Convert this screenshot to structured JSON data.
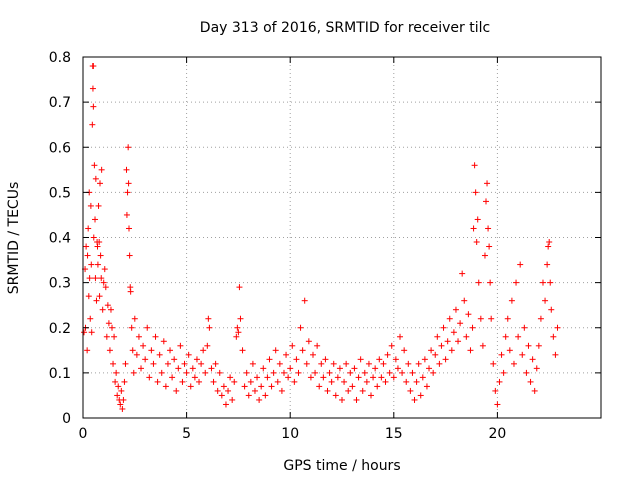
{
  "chart_data": {
    "type": "scatter",
    "title": "Day 313 of 2016, SRMTID for receiver tilc",
    "xlabel": "GPS time / hours",
    "ylabel": "SRMTID / TECUs",
    "xlim": [
      0,
      25
    ],
    "ylim": [
      0,
      0.8
    ],
    "xticks": [
      0,
      5,
      10,
      15,
      20
    ],
    "yticks": [
      0,
      0.1,
      0.2,
      0.3,
      0.4,
      0.5,
      0.6,
      0.7,
      0.8
    ],
    "xtick_labels": [
      "0",
      "5",
      "10",
      "15",
      "20"
    ],
    "ytick_labels": [
      "0",
      "0.1",
      "0.2",
      "0.3",
      "0.4",
      "0.5",
      "0.6",
      "0.7",
      "0.8"
    ],
    "grid": true,
    "marker": "+",
    "color": "#ff0000",
    "series": [
      {
        "name": "SRMTID",
        "points": [
          [
            0.05,
            0.19
          ],
          [
            0.1,
            0.33
          ],
          [
            0.12,
            0.2
          ],
          [
            0.15,
            0.38
          ],
          [
            0.2,
            0.15
          ],
          [
            0.22,
            0.36
          ],
          [
            0.25,
            0.42
          ],
          [
            0.28,
            0.27
          ],
          [
            0.3,
            0.5
          ],
          [
            0.32,
            0.31
          ],
          [
            0.35,
            0.22
          ],
          [
            0.38,
            0.47
          ],
          [
            0.4,
            0.34
          ],
          [
            0.42,
            0.19
          ],
          [
            0.45,
            0.65
          ],
          [
            0.47,
            0.78
          ],
          [
            0.48,
            0.73
          ],
          [
            0.5,
            0.78
          ],
          [
            0.5,
            0.69
          ],
          [
            0.52,
            0.4
          ],
          [
            0.55,
            0.56
          ],
          [
            0.58,
            0.44
          ],
          [
            0.6,
            0.31
          ],
          [
            0.62,
            0.53
          ],
          [
            0.65,
            0.26
          ],
          [
            0.68,
            0.39
          ],
          [
            0.7,
            0.38
          ],
          [
            0.72,
            0.34
          ],
          [
            0.75,
            0.47
          ],
          [
            0.78,
            0.39
          ],
          [
            0.8,
            0.27
          ],
          [
            0.82,
            0.52
          ],
          [
            0.85,
            0.36
          ],
          [
            0.88,
            0.31
          ],
          [
            0.9,
            0.55
          ],
          [
            0.95,
            0.24
          ],
          [
            1.0,
            0.3
          ],
          [
            1.05,
            0.33
          ],
          [
            1.1,
            0.29
          ],
          [
            1.15,
            0.18
          ],
          [
            1.2,
            0.25
          ],
          [
            1.25,
            0.21
          ],
          [
            1.3,
            0.15
          ],
          [
            1.35,
            0.24
          ],
          [
            1.4,
            0.2
          ],
          [
            1.45,
            0.12
          ],
          [
            1.5,
            0.18
          ],
          [
            1.55,
            0.08
          ],
          [
            1.6,
            0.1
          ],
          [
            1.65,
            0.05
          ],
          [
            1.7,
            0.07
          ],
          [
            1.75,
            0.04
          ],
          [
            1.8,
            0.03
          ],
          [
            1.85,
            0.06
          ],
          [
            1.9,
            0.02
          ],
          [
            1.95,
            0.04
          ],
          [
            2.0,
            0.08
          ],
          [
            2.05,
            0.12
          ],
          [
            2.1,
            0.55
          ],
          [
            2.12,
            0.45
          ],
          [
            2.15,
            0.5
          ],
          [
            2.18,
            0.6
          ],
          [
            2.2,
            0.52
          ],
          [
            2.22,
            0.42
          ],
          [
            2.25,
            0.36
          ],
          [
            2.28,
            0.29
          ],
          [
            2.3,
            0.28
          ],
          [
            2.35,
            0.2
          ],
          [
            2.4,
            0.15
          ],
          [
            2.45,
            0.1
          ],
          [
            2.5,
            0.22
          ],
          [
            2.6,
            0.14
          ],
          [
            2.7,
            0.18
          ],
          [
            2.8,
            0.11
          ],
          [
            2.9,
            0.16
          ],
          [
            3.0,
            0.13
          ],
          [
            3.1,
            0.2
          ],
          [
            3.2,
            0.09
          ],
          [
            3.3,
            0.15
          ],
          [
            3.4,
            0.12
          ],
          [
            3.5,
            0.18
          ],
          [
            3.6,
            0.08
          ],
          [
            3.7,
            0.14
          ],
          [
            3.8,
            0.1
          ],
          [
            3.9,
            0.17
          ],
          [
            4.0,
            0.07
          ],
          [
            4.1,
            0.12
          ],
          [
            4.2,
            0.15
          ],
          [
            4.3,
            0.09
          ],
          [
            4.4,
            0.13
          ],
          [
            4.5,
            0.06
          ],
          [
            4.6,
            0.11
          ],
          [
            4.7,
            0.16
          ],
          [
            4.8,
            0.08
          ],
          [
            4.9,
            0.12
          ],
          [
            5.0,
            0.1
          ],
          [
            5.1,
            0.14
          ],
          [
            5.2,
            0.07
          ],
          [
            5.3,
            0.11
          ],
          [
            5.4,
            0.09
          ],
          [
            5.5,
            0.13
          ],
          [
            5.6,
            0.08
          ],
          [
            5.7,
            0.12
          ],
          [
            5.8,
            0.15
          ],
          [
            5.9,
            0.1
          ],
          [
            6.0,
            0.16
          ],
          [
            6.05,
            0.22
          ],
          [
            6.1,
            0.2
          ],
          [
            6.2,
            0.11
          ],
          [
            6.3,
            0.08
          ],
          [
            6.4,
            0.12
          ],
          [
            6.5,
            0.06
          ],
          [
            6.6,
            0.1
          ],
          [
            6.7,
            0.05
          ],
          [
            6.8,
            0.07
          ],
          [
            6.9,
            0.03
          ],
          [
            7.0,
            0.06
          ],
          [
            7.1,
            0.09
          ],
          [
            7.2,
            0.04
          ],
          [
            7.3,
            0.08
          ],
          [
            7.4,
            0.18
          ],
          [
            7.45,
            0.2
          ],
          [
            7.5,
            0.19
          ],
          [
            7.55,
            0.29
          ],
          [
            7.6,
            0.22
          ],
          [
            7.7,
            0.15
          ],
          [
            7.8,
            0.07
          ],
          [
            7.9,
            0.1
          ],
          [
            8.0,
            0.05
          ],
          [
            8.1,
            0.08
          ],
          [
            8.2,
            0.12
          ],
          [
            8.3,
            0.06
          ],
          [
            8.4,
            0.09
          ],
          [
            8.5,
            0.04
          ],
          [
            8.6,
            0.07
          ],
          [
            8.7,
            0.11
          ],
          [
            8.8,
            0.05
          ],
          [
            8.9,
            0.09
          ],
          [
            9.0,
            0.13
          ],
          [
            9.1,
            0.07
          ],
          [
            9.2,
            0.1
          ],
          [
            9.3,
            0.15
          ],
          [
            9.4,
            0.08
          ],
          [
            9.5,
            0.12
          ],
          [
            9.6,
            0.06
          ],
          [
            9.7,
            0.1
          ],
          [
            9.8,
            0.14
          ],
          [
            9.9,
            0.09
          ],
          [
            10.0,
            0.11
          ],
          [
            10.1,
            0.16
          ],
          [
            10.2,
            0.08
          ],
          [
            10.3,
            0.13
          ],
          [
            10.4,
            0.1
          ],
          [
            10.5,
            0.2
          ],
          [
            10.6,
            0.15
          ],
          [
            10.7,
            0.26
          ],
          [
            10.8,
            0.12
          ],
          [
            10.9,
            0.17
          ],
          [
            11.0,
            0.09
          ],
          [
            11.1,
            0.14
          ],
          [
            11.2,
            0.1
          ],
          [
            11.3,
            0.16
          ],
          [
            11.4,
            0.07
          ],
          [
            11.5,
            0.12
          ],
          [
            11.6,
            0.09
          ],
          [
            11.7,
            0.13
          ],
          [
            11.8,
            0.06
          ],
          [
            11.9,
            0.1
          ],
          [
            12.0,
            0.08
          ],
          [
            12.1,
            0.12
          ],
          [
            12.2,
            0.05
          ],
          [
            12.3,
            0.09
          ],
          [
            12.4,
            0.11
          ],
          [
            12.5,
            0.04
          ],
          [
            12.6,
            0.08
          ],
          [
            12.7,
            0.12
          ],
          [
            12.8,
            0.06
          ],
          [
            12.9,
            0.1
          ],
          [
            13.0,
            0.07
          ],
          [
            13.1,
            0.11
          ],
          [
            13.2,
            0.04
          ],
          [
            13.3,
            0.09
          ],
          [
            13.4,
            0.13
          ],
          [
            13.5,
            0.06
          ],
          [
            13.6,
            0.1
          ],
          [
            13.7,
            0.08
          ],
          [
            13.8,
            0.12
          ],
          [
            13.9,
            0.05
          ],
          [
            14.0,
            0.09
          ],
          [
            14.1,
            0.11
          ],
          [
            14.2,
            0.07
          ],
          [
            14.3,
            0.13
          ],
          [
            14.4,
            0.09
          ],
          [
            14.5,
            0.12
          ],
          [
            14.6,
            0.08
          ],
          [
            14.7,
            0.14
          ],
          [
            14.8,
            0.1
          ],
          [
            14.9,
            0.16
          ],
          [
            15.0,
            0.09
          ],
          [
            15.1,
            0.13
          ],
          [
            15.2,
            0.11
          ],
          [
            15.3,
            0.18
          ],
          [
            15.4,
            0.1
          ],
          [
            15.5,
            0.15
          ],
          [
            15.6,
            0.08
          ],
          [
            15.7,
            0.12
          ],
          [
            15.8,
            0.06
          ],
          [
            15.9,
            0.1
          ],
          [
            16.0,
            0.04
          ],
          [
            16.1,
            0.08
          ],
          [
            16.2,
            0.12
          ],
          [
            16.3,
            0.05
          ],
          [
            16.4,
            0.09
          ],
          [
            16.5,
            0.13
          ],
          [
            16.6,
            0.07
          ],
          [
            16.7,
            0.11
          ],
          [
            16.8,
            0.15
          ],
          [
            16.9,
            0.1
          ],
          [
            17.0,
            0.14
          ],
          [
            17.1,
            0.18
          ],
          [
            17.2,
            0.12
          ],
          [
            17.3,
            0.16
          ],
          [
            17.4,
            0.2
          ],
          [
            17.5,
            0.13
          ],
          [
            17.6,
            0.17
          ],
          [
            17.7,
            0.22
          ],
          [
            17.8,
            0.15
          ],
          [
            17.9,
            0.19
          ],
          [
            18.0,
            0.24
          ],
          [
            18.1,
            0.17
          ],
          [
            18.2,
            0.21
          ],
          [
            18.3,
            0.32
          ],
          [
            18.4,
            0.26
          ],
          [
            18.5,
            0.18
          ],
          [
            18.6,
            0.23
          ],
          [
            18.7,
            0.15
          ],
          [
            18.8,
            0.2
          ],
          [
            18.85,
            0.42
          ],
          [
            18.9,
            0.56
          ],
          [
            18.95,
            0.5
          ],
          [
            19.0,
            0.39
          ],
          [
            19.05,
            0.44
          ],
          [
            19.1,
            0.3
          ],
          [
            19.2,
            0.22
          ],
          [
            19.3,
            0.16
          ],
          [
            19.4,
            0.36
          ],
          [
            19.45,
            0.48
          ],
          [
            19.5,
            0.52
          ],
          [
            19.55,
            0.42
          ],
          [
            19.6,
            0.38
          ],
          [
            19.65,
            0.3
          ],
          [
            19.7,
            0.22
          ],
          [
            19.8,
            0.12
          ],
          [
            19.9,
            0.06
          ],
          [
            20.0,
            0.03
          ],
          [
            20.1,
            0.08
          ],
          [
            20.2,
            0.14
          ],
          [
            20.3,
            0.1
          ],
          [
            20.4,
            0.18
          ],
          [
            20.5,
            0.22
          ],
          [
            20.6,
            0.15
          ],
          [
            20.7,
            0.26
          ],
          [
            20.8,
            0.12
          ],
          [
            20.9,
            0.3
          ],
          [
            21.0,
            0.18
          ],
          [
            21.1,
            0.34
          ],
          [
            21.2,
            0.14
          ],
          [
            21.3,
            0.2
          ],
          [
            21.4,
            0.1
          ],
          [
            21.5,
            0.16
          ],
          [
            21.6,
            0.08
          ],
          [
            21.7,
            0.13
          ],
          [
            21.8,
            0.06
          ],
          [
            21.9,
            0.11
          ],
          [
            22.0,
            0.16
          ],
          [
            22.1,
            0.22
          ],
          [
            22.2,
            0.3
          ],
          [
            22.3,
            0.26
          ],
          [
            22.4,
            0.34
          ],
          [
            22.45,
            0.38
          ],
          [
            22.5,
            0.39
          ],
          [
            22.55,
            0.3
          ],
          [
            22.6,
            0.24
          ],
          [
            22.7,
            0.18
          ],
          [
            22.8,
            0.14
          ],
          [
            22.9,
            0.2
          ]
        ]
      }
    ]
  }
}
